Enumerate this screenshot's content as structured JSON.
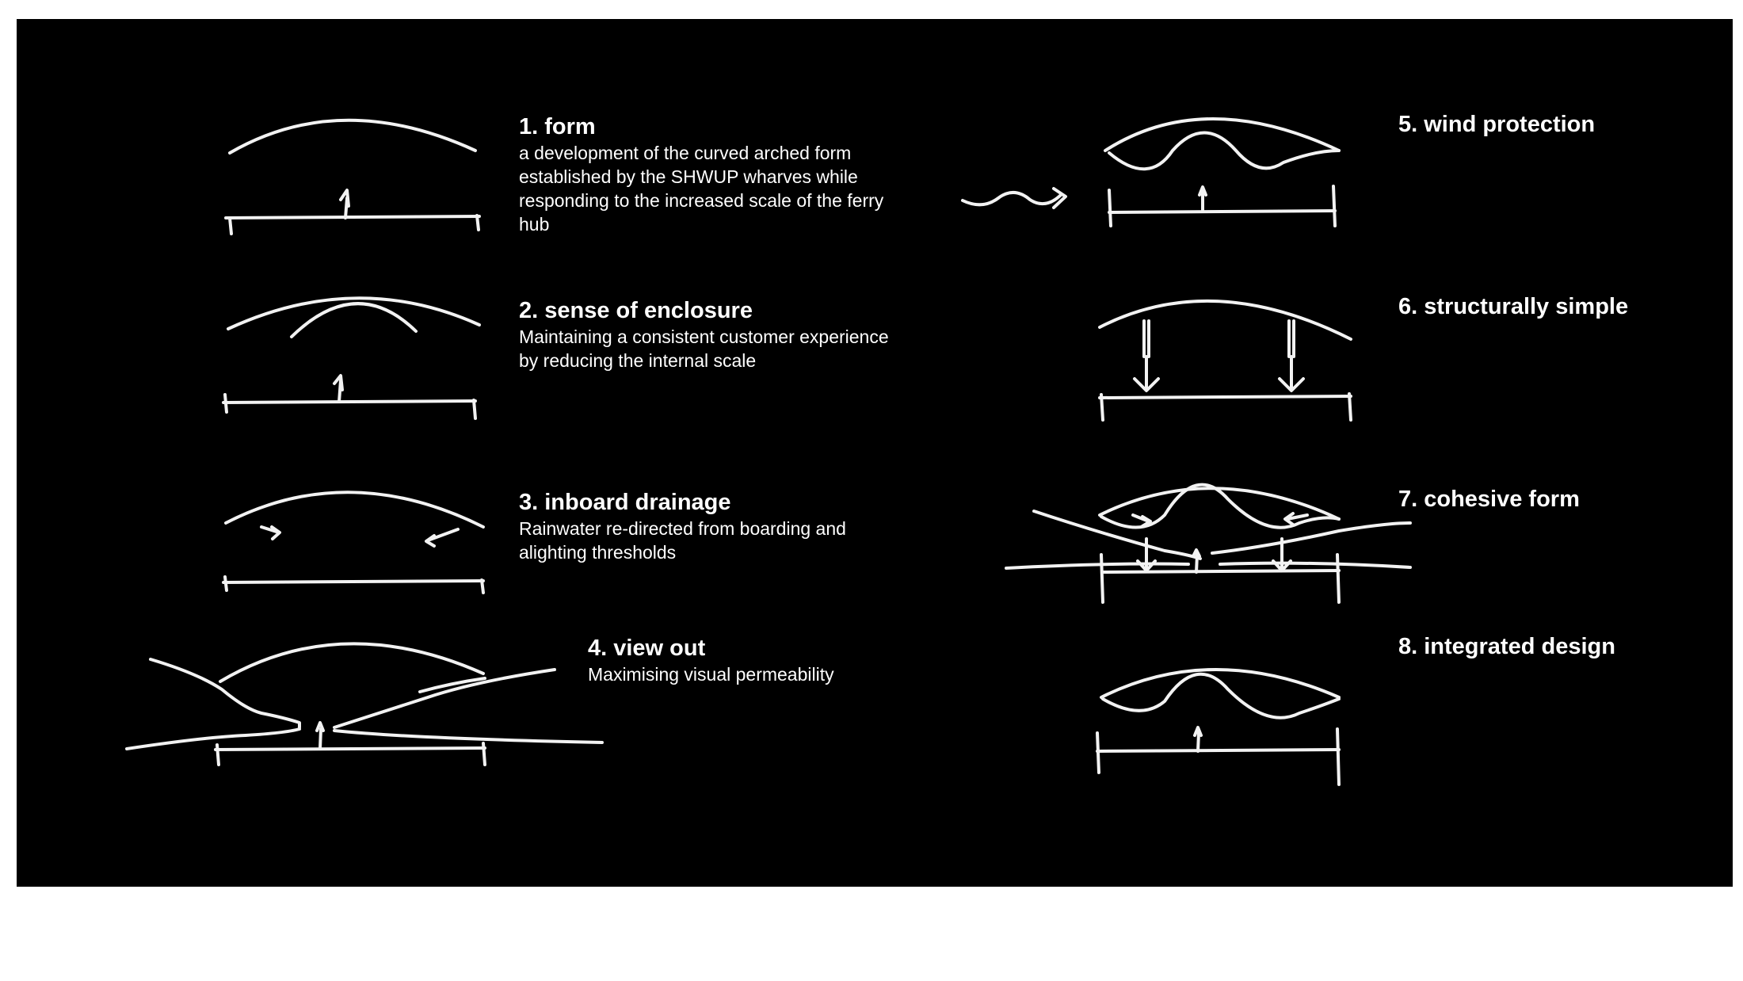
{
  "items": [
    {
      "title": "1. form",
      "desc": "a development of the curved arched form established by the SHWUP wharves while responding to the increased scale of the ferry hub"
    },
    {
      "title": "2. sense of enclosure",
      "desc": "Maintaining a consistent customer experience by reducing the internal scale"
    },
    {
      "title": "3. inboard drainage",
      "desc": "Rainwater re-directed from boarding and alighting thresholds"
    },
    {
      "title": "4. view out",
      "desc": "Maximising visual permeability"
    },
    {
      "title": "5. wind protection",
      "desc": ""
    },
    {
      "title": "6. structurally simple",
      "desc": ""
    },
    {
      "title": "7. cohesive form",
      "desc": ""
    },
    {
      "title": "8. integrated design",
      "desc": ""
    }
  ],
  "colors": {
    "background": "#000000",
    "ink": "#ffffff",
    "page": "#ffffff"
  }
}
